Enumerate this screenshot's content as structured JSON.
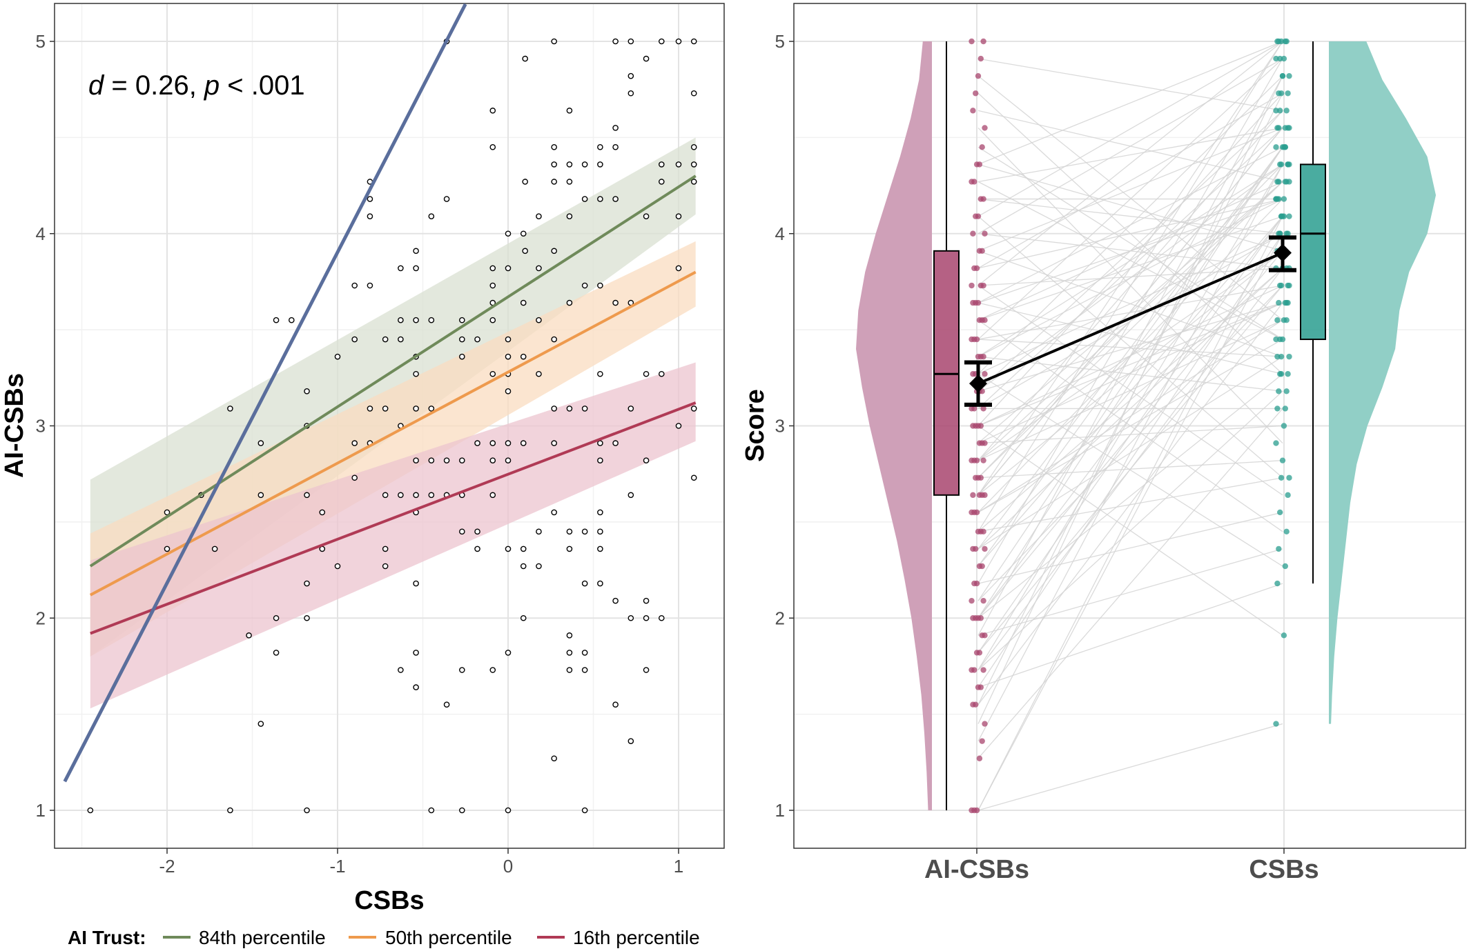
{
  "chart_data": [
    {
      "type": "scatter",
      "xlabel": "CSBs",
      "ylabel": "AI-CSBs",
      "xlim": [
        -2.6,
        1.3
      ],
      "ylim": [
        0.8,
        5.2
      ],
      "xticks": [
        -2,
        -1,
        0,
        1
      ],
      "yticks": [
        1,
        2,
        3,
        4,
        5
      ],
      "grid": true,
      "annotation": {
        "d_symbol": "d",
        "d_text": " = 0.26, ",
        "p_symbol": "p",
        "p_text": " < .001"
      },
      "legend": {
        "title": "AI Trust:",
        "placement": "bottom",
        "entries": [
          "84th percentile",
          "50th percentile",
          "16th percentile"
        ]
      },
      "reference_line": {
        "color": "#5a6e9c",
        "x": [
          -2.6,
          -0.25
        ],
        "y": [
          1.15,
          5.2
        ]
      },
      "series": [
        {
          "name": "84th percentile",
          "color": "#6f8a5a",
          "band_color": "#d9e0d2",
          "x": [
            -2.45,
            1.1
          ],
          "y": [
            2.27,
            4.3
          ],
          "lower": [
            1.8,
            4.1
          ],
          "upper": [
            2.72,
            4.5
          ]
        },
        {
          "name": "50th percentile",
          "color": "#ee9a4d",
          "band_color": "#fadcc0",
          "x": [
            -2.45,
            1.1
          ],
          "y": [
            2.12,
            3.8
          ],
          "lower": [
            1.8,
            3.62
          ],
          "upper": [
            2.44,
            3.96
          ]
        },
        {
          "name": "16th percentile",
          "color": "#b03a55",
          "band_color": "#ecc4cf",
          "x": [
            -2.45,
            1.1
          ],
          "y": [
            1.92,
            3.12
          ],
          "lower": [
            1.53,
            2.92
          ],
          "upper": [
            2.3,
            3.33
          ]
        }
      ],
      "points": [
        [
          -2.45,
          1
        ],
        [
          -2.0,
          2.55
        ],
        [
          -2.0,
          2.36
        ],
        [
          -1.8,
          2.64
        ],
        [
          -1.72,
          2.36
        ],
        [
          -1.63,
          3.09
        ],
        [
          -1.63,
          1
        ],
        [
          -1.52,
          1.91
        ],
        [
          -1.45,
          2.91
        ],
        [
          -1.45,
          2.64
        ],
        [
          -1.45,
          1.45
        ],
        [
          -1.36,
          3.55
        ],
        [
          -1.36,
          2
        ],
        [
          -1.36,
          1.82
        ],
        [
          -1.27,
          3.55
        ],
        [
          -1.18,
          3.18
        ],
        [
          -1.18,
          3
        ],
        [
          -1.18,
          2.64
        ],
        [
          -1.18,
          2.18
        ],
        [
          -1.18,
          2
        ],
        [
          -1.18,
          1
        ],
        [
          -1.09,
          2.55
        ],
        [
          -1.09,
          2.36
        ],
        [
          -1.0,
          3.36
        ],
        [
          -1.0,
          2.27
        ],
        [
          -0.9,
          3.73
        ],
        [
          -0.9,
          3.45
        ],
        [
          -0.9,
          2.91
        ],
        [
          -0.9,
          2.73
        ],
        [
          -0.81,
          4.27
        ],
        [
          -0.81,
          4.18
        ],
        [
          -0.81,
          4.09
        ],
        [
          -0.81,
          3.73
        ],
        [
          -0.81,
          3.09
        ],
        [
          -0.81,
          2.91
        ],
        [
          -0.72,
          3.45
        ],
        [
          -0.72,
          3.09
        ],
        [
          -0.72,
          2.64
        ],
        [
          -0.72,
          2.36
        ],
        [
          -0.72,
          2.27
        ],
        [
          -0.63,
          3.82
        ],
        [
          -0.63,
          3.55
        ],
        [
          -0.63,
          3.45
        ],
        [
          -0.63,
          3
        ],
        [
          -0.63,
          2.64
        ],
        [
          -0.63,
          1.73
        ],
        [
          -0.54,
          3.91
        ],
        [
          -0.54,
          3.82
        ],
        [
          -0.54,
          3.55
        ],
        [
          -0.54,
          3.36
        ],
        [
          -0.54,
          3.27
        ],
        [
          -0.54,
          3.09
        ],
        [
          -0.54,
          2.82
        ],
        [
          -0.54,
          2.64
        ],
        [
          -0.54,
          2.55
        ],
        [
          -0.54,
          2.18
        ],
        [
          -0.54,
          1.82
        ],
        [
          -0.54,
          1.64
        ],
        [
          -0.45,
          4.09
        ],
        [
          -0.45,
          3.55
        ],
        [
          -0.45,
          3.09
        ],
        [
          -0.45,
          2.82
        ],
        [
          -0.45,
          2.64
        ],
        [
          -0.45,
          1
        ],
        [
          -0.36,
          5
        ],
        [
          -0.36,
          4.18
        ],
        [
          -0.36,
          2.82
        ],
        [
          -0.36,
          2.64
        ],
        [
          -0.36,
          1.55
        ],
        [
          -0.27,
          3.55
        ],
        [
          -0.27,
          3.45
        ],
        [
          -0.27,
          3.36
        ],
        [
          -0.27,
          2.82
        ],
        [
          -0.27,
          2.64
        ],
        [
          -0.27,
          2.45
        ],
        [
          -0.27,
          1.73
        ],
        [
          -0.27,
          1
        ],
        [
          -0.18,
          3.45
        ],
        [
          -0.18,
          2.91
        ],
        [
          -0.18,
          2.45
        ],
        [
          -0.18,
          2.36
        ],
        [
          -0.09,
          3.82
        ],
        [
          -0.09,
          3.55
        ],
        [
          -0.09,
          3.27
        ],
        [
          -0.09,
          2.91
        ],
        [
          -0.09,
          2.82
        ],
        [
          -0.09,
          2.64
        ],
        [
          -0.09,
          1.73
        ],
        [
          -0.09,
          4.64
        ],
        [
          -0.09,
          4.45
        ],
        [
          -0.09,
          3.73
        ],
        [
          -0.09,
          3.64
        ],
        [
          0.0,
          4.0
        ],
        [
          0.0,
          3.82
        ],
        [
          0.0,
          3.45
        ],
        [
          0.0,
          3.36
        ],
        [
          0.0,
          3.27
        ],
        [
          0.0,
          3.18
        ],
        [
          0.0,
          2.91
        ],
        [
          0.0,
          2.82
        ],
        [
          0.0,
          2.36
        ],
        [
          0.0,
          1.82
        ],
        [
          0.0,
          1
        ],
        [
          0.09,
          4.0
        ],
        [
          0.09,
          3.64
        ],
        [
          0.09,
          3.36
        ],
        [
          0.09,
          2.91
        ],
        [
          0.09,
          2.36
        ],
        [
          0.09,
          2.27
        ],
        [
          0.09,
          2
        ],
        [
          0.1,
          4.91
        ],
        [
          0.1,
          4.27
        ],
        [
          0.1,
          3.91
        ],
        [
          0.18,
          4.09
        ],
        [
          0.18,
          3.82
        ],
        [
          0.18,
          3.55
        ],
        [
          0.18,
          3.27
        ],
        [
          0.18,
          2.45
        ],
        [
          0.18,
          2.27
        ],
        [
          0.27,
          5
        ],
        [
          0.27,
          4.45
        ],
        [
          0.27,
          4.36
        ],
        [
          0.27,
          4.27
        ],
        [
          0.27,
          3.91
        ],
        [
          0.27,
          3.45
        ],
        [
          0.27,
          3.09
        ],
        [
          0.27,
          2.91
        ],
        [
          0.27,
          2.55
        ],
        [
          0.27,
          1.27
        ],
        [
          0.36,
          4.36
        ],
        [
          0.36,
          3.64
        ],
        [
          0.36,
          3.09
        ],
        [
          0.36,
          2.45
        ],
        [
          0.36,
          2.36
        ],
        [
          0.36,
          1.91
        ],
        [
          0.36,
          1.82
        ],
        [
          0.36,
          1.73
        ],
        [
          0.36,
          4.64
        ],
        [
          0.36,
          4.27
        ],
        [
          0.36,
          4.09
        ],
        [
          0.45,
          4.36
        ],
        [
          0.45,
          4.18
        ],
        [
          0.45,
          3.73
        ],
        [
          0.45,
          3.09
        ],
        [
          0.45,
          2.45
        ],
        [
          0.45,
          2.18
        ],
        [
          0.45,
          1.82
        ],
        [
          0.45,
          1.73
        ],
        [
          0.45,
          1
        ],
        [
          0.54,
          4.45
        ],
        [
          0.54,
          4.36
        ],
        [
          0.54,
          4.18
        ],
        [
          0.54,
          3.73
        ],
        [
          0.54,
          3.27
        ],
        [
          0.54,
          2.55
        ],
        [
          0.54,
          2.45
        ],
        [
          0.54,
          2.36
        ],
        [
          0.54,
          2.18
        ],
        [
          0.54,
          2.82
        ],
        [
          0.54,
          2.91
        ],
        [
          0.63,
          5
        ],
        [
          0.63,
          4.55
        ],
        [
          0.63,
          4.45
        ],
        [
          0.63,
          4.18
        ],
        [
          0.63,
          3.64
        ],
        [
          0.63,
          2.91
        ],
        [
          0.63,
          2.09
        ],
        [
          0.63,
          1.55
        ],
        [
          0.72,
          5
        ],
        [
          0.72,
          4.82
        ],
        [
          0.72,
          4.73
        ],
        [
          0.72,
          3.64
        ],
        [
          0.72,
          3.09
        ],
        [
          0.72,
          2.64
        ],
        [
          0.72,
          2
        ],
        [
          0.72,
          1.36
        ],
        [
          0.81,
          4.91
        ],
        [
          0.81,
          4.09
        ],
        [
          0.81,
          3.27
        ],
        [
          0.81,
          2.82
        ],
        [
          0.81,
          2.09
        ],
        [
          0.81,
          2
        ],
        [
          0.81,
          1.73
        ],
        [
          0.9,
          5
        ],
        [
          0.9,
          4.36
        ],
        [
          0.9,
          4.27
        ],
        [
          0.9,
          3.27
        ],
        [
          0.9,
          2
        ],
        [
          1.0,
          5
        ],
        [
          1.0,
          4.36
        ],
        [
          1.0,
          4.09
        ],
        [
          1.0,
          3.82
        ],
        [
          1.0,
          3
        ],
        [
          1.09,
          5
        ],
        [
          1.09,
          4.73
        ],
        [
          1.09,
          4.45
        ],
        [
          1.09,
          4.36
        ],
        [
          1.09,
          4.27
        ],
        [
          1.09,
          3.09
        ],
        [
          1.09,
          2.73
        ]
      ]
    },
    {
      "type": "raincloud",
      "xlabel": "",
      "ylabel": "Score",
      "categories": [
        "AI-CSBs",
        "CSBs"
      ],
      "ylim": [
        0.8,
        5.2
      ],
      "yticks": [
        1,
        2,
        3,
        4,
        5
      ],
      "grid": true,
      "colors": {
        "AI-CSBs": "#a8456e",
        "CSBs": "#2a9d8f",
        "AI-CSBs_light": "#cfa0b8",
        "CSBs_light": "#91cfc6",
        "paired_lines": "#d3d3d3",
        "mean_line": "#000000"
      },
      "boxplots": [
        {
          "category": "AI-CSBs",
          "min": 1.0,
          "q1": 2.64,
          "median": 3.27,
          "q3": 3.91,
          "max": 5.0
        },
        {
          "category": "CSBs",
          "min": 2.18,
          "q1": 3.45,
          "median": 4.0,
          "q3": 4.36,
          "max": 5.0
        }
      ],
      "means": [
        {
          "category": "AI-CSBs",
          "mean": 3.22,
          "ci_low": 3.11,
          "ci_high": 3.33
        },
        {
          "category": "CSBs",
          "mean": 3.9,
          "ci_low": 3.81,
          "ci_high": 3.98
        }
      ],
      "density": {
        "AI-CSBs": {
          "y": [
            1.0,
            1.2,
            1.4,
            1.6,
            1.8,
            2.0,
            2.2,
            2.4,
            2.6,
            2.8,
            3.0,
            3.2,
            3.4,
            3.6,
            3.8,
            4.0,
            4.2,
            4.4,
            4.6,
            4.8,
            5.0
          ],
          "d": [
            0.05,
            0.07,
            0.1,
            0.14,
            0.2,
            0.27,
            0.36,
            0.46,
            0.58,
            0.7,
            0.82,
            0.92,
            1.0,
            0.97,
            0.88,
            0.74,
            0.58,
            0.42,
            0.28,
            0.17,
            0.12
          ]
        },
        "CSBs": {
          "y": [
            1.45,
            1.6,
            1.8,
            2.0,
            2.2,
            2.4,
            2.6,
            2.8,
            3.0,
            3.2,
            3.4,
            3.6,
            3.8,
            4.0,
            4.2,
            4.4,
            4.6,
            4.8,
            5.0
          ],
          "d": [
            0.02,
            0.03,
            0.05,
            0.08,
            0.12,
            0.16,
            0.2,
            0.26,
            0.36,
            0.5,
            0.62,
            0.66,
            0.75,
            0.92,
            1.0,
            0.92,
            0.72,
            0.5,
            0.35
          ]
        }
      },
      "aicsbs_values": [
        1,
        1,
        1,
        1.27,
        1.36,
        1.45,
        1.55,
        1.55,
        1.64,
        1.64,
        1.73,
        1.73,
        1.73,
        1.82,
        1.82,
        1.91,
        1.91,
        2,
        2,
        2,
        2,
        2.09,
        2.09,
        2.18,
        2.18,
        2.27,
        2.27,
        2.36,
        2.36,
        2.36,
        2.45,
        2.45,
        2.45,
        2.55,
        2.55,
        2.55,
        2.64,
        2.64,
        2.64,
        2.64,
        2.73,
        2.73,
        2.73,
        2.82,
        2.82,
        2.82,
        2.82,
        2.91,
        2.91,
        2.91,
        3,
        3,
        3,
        3,
        3.09,
        3.09,
        3.09,
        3.18,
        3.18,
        3.18,
        3.27,
        3.27,
        3.27,
        3.36,
        3.36,
        3.36,
        3.45,
        3.45,
        3.45,
        3.55,
        3.55,
        3.55,
        3.64,
        3.64,
        3.64,
        3.73,
        3.73,
        3.73,
        3.82,
        3.82,
        3.91,
        3.91,
        4,
        4,
        4.09,
        4.09,
        4.18,
        4.18,
        4.27,
        4.27,
        4.36,
        4.36,
        4.45,
        4.55,
        4.64,
        4.73,
        4.82,
        4.91,
        5,
        5
      ],
      "csbs_values": [
        1.45,
        1.91,
        2.18,
        2.27,
        2.36,
        2.45,
        2.55,
        2.64,
        2.73,
        2.73,
        2.82,
        2.91,
        3,
        3.09,
        3.09,
        3.18,
        3.18,
        3.27,
        3.27,
        3.36,
        3.36,
        3.45,
        3.45,
        3.55,
        3.55,
        3.64,
        3.64,
        3.64,
        3.73,
        3.73,
        3.73,
        3.82,
        3.82,
        3.82,
        3.91,
        3.91,
        3.91,
        4,
        4,
        4,
        4,
        4.09,
        4.09,
        4.09,
        4.18,
        4.18,
        4.18,
        4.27,
        4.27,
        4.27,
        4.36,
        4.36,
        4.36,
        4.36,
        4.45,
        4.45,
        4.45,
        4.55,
        4.55,
        4.55,
        4.64,
        4.64,
        4.73,
        4.73,
        4.82,
        4.82,
        4.91,
        4.91,
        5,
        5,
        5,
        5,
        3.45,
        3.64,
        4.09,
        4.55,
        3.82,
        4.18,
        3.91,
        4.27,
        4.45,
        4.73,
        3.55,
        4,
        4.36,
        3.27,
        3.73,
        4.82,
        4.64,
        4.09,
        3.36,
        4.45,
        4.18,
        3.82,
        4.91,
        4.55,
        5,
        4.27
      ]
    }
  ]
}
